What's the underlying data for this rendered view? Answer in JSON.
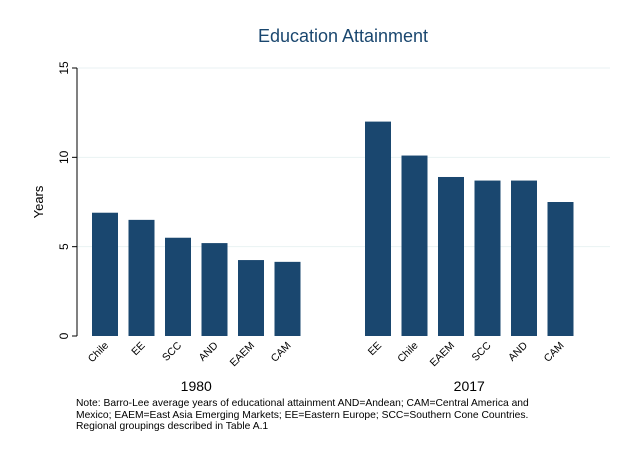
{
  "chart_data": {
    "type": "bar",
    "title": "Education Attainment",
    "ylabel": "Years",
    "ylim": [
      0,
      15
    ],
    "yticks": [
      0,
      5,
      10,
      15
    ],
    "grid": true,
    "bar_color": "#1a476f",
    "groups": [
      {
        "label": "1980",
        "categories": [
          "Chile",
          "EE",
          "SCC",
          "AND",
          "EAEM",
          "CAM"
        ],
        "values": [
          6.9,
          6.5,
          5.5,
          5.2,
          4.25,
          4.15
        ]
      },
      {
        "label": "2017",
        "categories": [
          "EE",
          "Chile",
          "EAEM",
          "SCC",
          "AND",
          "CAM"
        ],
        "values": [
          12.0,
          10.1,
          8.9,
          8.7,
          8.7,
          7.5
        ]
      }
    ]
  },
  "note": {
    "lines": [
      "Note: Barro-Lee average years of educational attainment AND=Andean; CAM=Central America and",
      "Mexico; EAEM=East Asia Emerging Markets; EE=Eastern Europe; SCC=Southern Cone Countries.",
      "Regional groupings described in Table A.1"
    ]
  }
}
